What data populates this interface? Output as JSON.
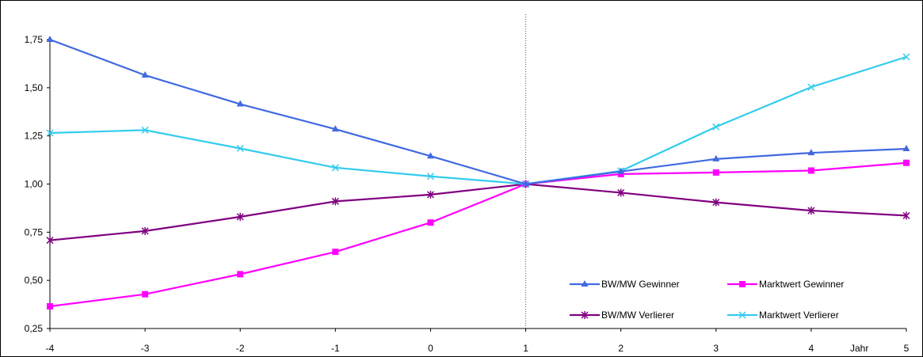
{
  "chart_data": {
    "type": "line",
    "title": "",
    "xlabel": "Jahr",
    "ylabel": "",
    "x": [
      -4,
      -3,
      -2,
      -1,
      0,
      1,
      2,
      3,
      4,
      5
    ],
    "x_tick_labels": [
      "-4",
      "-3",
      "-2",
      "-1",
      "0",
      "1",
      "2",
      "3",
      "4",
      "5"
    ],
    "ylim": [
      0.25,
      1.75
    ],
    "y_ticks": [
      0.25,
      0.5,
      0.75,
      1.0,
      1.25,
      1.5,
      1.75
    ],
    "y_tick_labels": [
      "0,25",
      "0,50",
      "0,75",
      "1,00",
      "1,25",
      "1,50",
      "1,75"
    ],
    "grid": false,
    "reference_line_x": 1,
    "legend_position": "bottom-right",
    "series": [
      {
        "name": "BW/MW Gewinner",
        "color": "#4169E1",
        "marker": "triangle",
        "values": [
          1.75,
          1.565,
          1.415,
          1.285,
          1.145,
          1.0,
          1.065,
          1.13,
          1.162,
          1.183
        ]
      },
      {
        "name": "Marktwert Gewinner",
        "color": "#FF00FF",
        "marker": "square",
        "values": [
          0.365,
          0.428,
          0.532,
          0.648,
          0.8,
          1.0,
          1.052,
          1.06,
          1.07,
          1.11
        ]
      },
      {
        "name": "BW/MW Verlierer",
        "color": "#800080",
        "marker": "star",
        "values": [
          0.708,
          0.756,
          0.83,
          0.91,
          0.945,
          1.0,
          0.955,
          0.905,
          0.862,
          0.836
        ]
      },
      {
        "name": "Marktwert Verlierer",
        "color": "#33CCEE",
        "marker": "x",
        "values": [
          1.265,
          1.28,
          1.185,
          1.085,
          1.04,
          1.0,
          1.068,
          1.297,
          1.503,
          1.66
        ]
      }
    ]
  }
}
